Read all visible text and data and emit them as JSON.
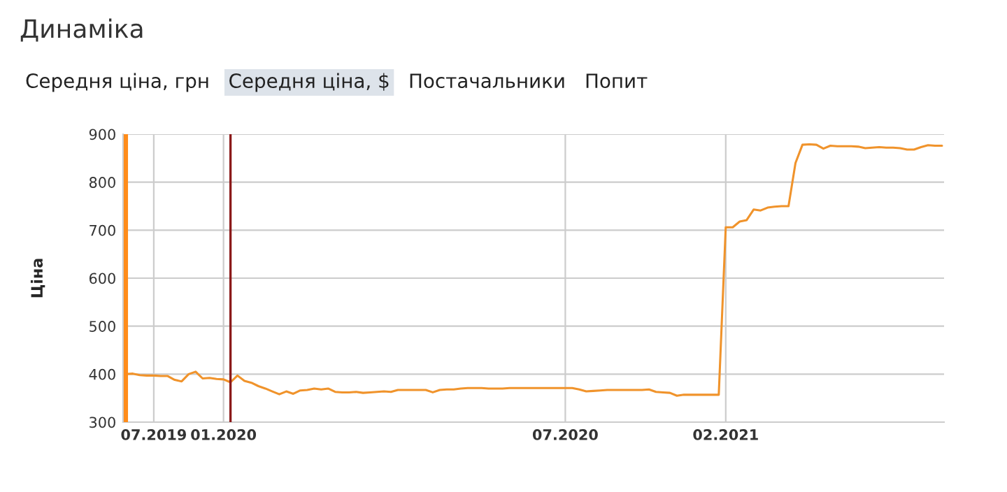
{
  "chart_data": {
    "type": "line",
    "title": "Динаміка",
    "annotations": [
      "Середня ціна, грн",
      "Середня ціна, $",
      "Постачальники",
      "Попит"
    ],
    "ylabel": "Ціна",
    "categories": [
      null,
      null,
      null,
      null,
      "07.2019",
      null,
      null,
      null,
      null,
      null,
      null,
      null,
      null,
      null,
      "01.2020",
      null,
      null,
      null,
      null,
      null,
      null,
      null,
      null,
      null,
      null,
      null,
      null,
      null,
      null,
      null,
      null,
      null,
      null,
      null,
      null,
      null,
      null,
      null,
      null,
      null,
      null,
      null,
      null,
      null,
      null,
      null,
      null,
      null,
      null,
      null,
      null,
      null,
      null,
      null,
      null,
      null,
      null,
      null,
      null,
      null,
      null,
      null,
      null,
      "07.2020",
      null,
      null,
      null,
      null,
      null,
      null,
      null,
      null,
      null,
      null,
      null,
      null,
      null,
      null,
      null,
      null,
      null,
      null,
      null,
      null,
      null,
      null,
      "02.2021",
      null,
      null,
      null,
      null,
      null,
      null,
      null,
      null,
      null,
      null,
      null,
      null,
      null,
      null,
      null,
      null,
      null,
      null,
      null,
      null,
      null,
      null,
      null,
      null,
      null,
      null,
      null,
      null,
      null,
      null,
      null
    ],
    "series": [
      {
        "color": "#f0932b",
        "values": [
          400,
          401,
          398,
          397,
          397,
          396,
          396,
          388,
          385,
          400,
          405,
          391,
          392,
          390,
          389,
          383,
          397,
          386,
          382,
          375,
          370,
          364,
          358,
          364,
          359,
          366,
          367,
          370,
          368,
          370,
          363,
          362,
          362,
          363,
          361,
          362,
          363,
          364,
          363,
          367,
          367,
          367,
          367,
          367,
          362,
          367,
          368,
          368,
          370,
          371,
          371,
          371,
          370,
          370,
          370,
          371,
          371,
          371,
          371,
          371,
          371,
          371,
          371,
          371,
          371,
          368,
          364,
          365,
          366,
          367,
          367,
          367,
          367,
          367,
          367,
          368,
          363,
          362,
          361,
          355,
          357,
          357,
          357,
          357,
          357,
          357,
          706,
          706,
          718,
          721,
          743,
          741,
          747,
          749,
          750,
          750,
          840,
          878,
          879,
          878,
          870,
          876,
          875,
          875,
          875,
          874,
          871,
          872,
          873,
          872,
          872,
          871,
          868,
          868,
          873,
          877,
          876,
          876
        ]
      }
    ],
    "ylim": [
      300,
      900
    ],
    "yticks": [
      300,
      400,
      500,
      600,
      700,
      800,
      900
    ],
    "grid": true
  }
}
